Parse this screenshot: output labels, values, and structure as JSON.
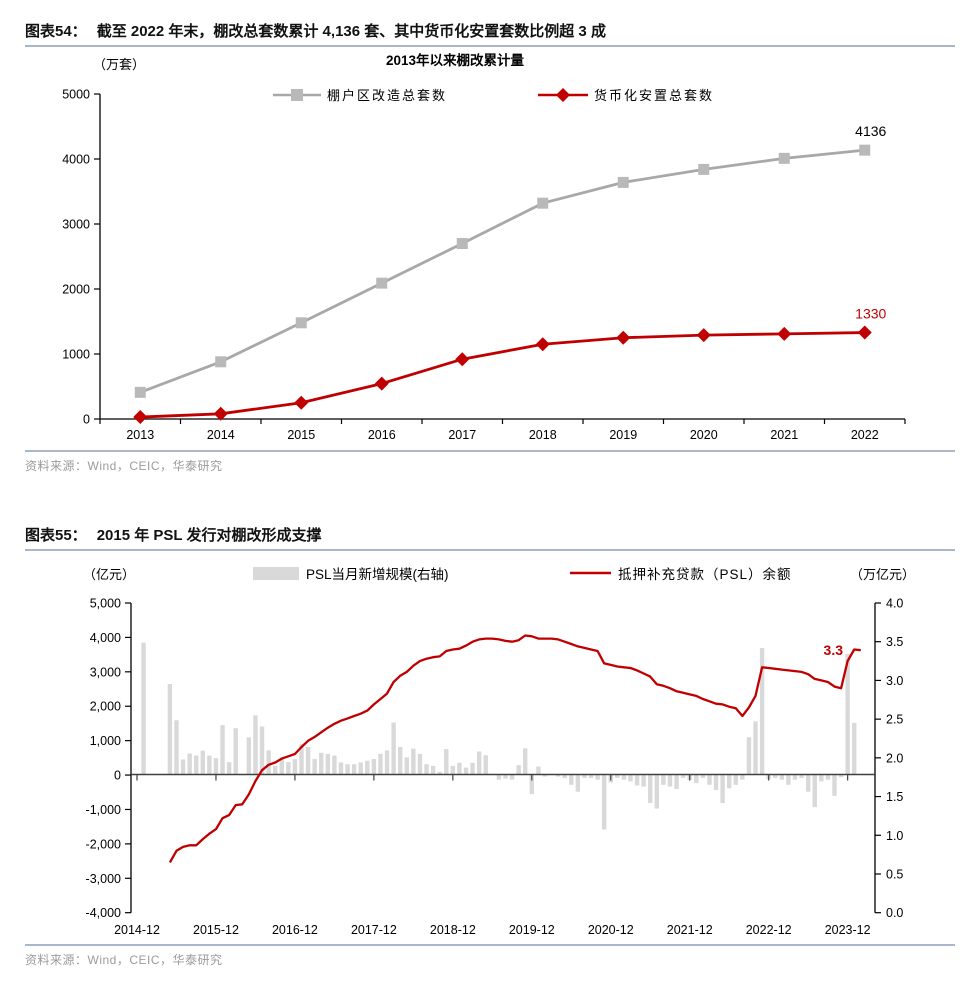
{
  "figure54": {
    "label": "图表54：",
    "title": "截至 2022 年末，棚改总套数累计 4,136 套、其中货币化安置套数比例超 3 成",
    "source": "资料来源：Wind，CEIC，华泰研究"
  },
  "figure55": {
    "label": "图表55：",
    "title": "2015 年 PSL 发行对棚改形成支撑",
    "source": "资料来源：Wind，CEIC，华泰研究"
  },
  "chart_data": [
    {
      "type": "line",
      "title": "2013年以来棚改累计量",
      "unit_label": "（万套）",
      "categories": [
        "2013",
        "2014",
        "2015",
        "2016",
        "2017",
        "2018",
        "2019",
        "2020",
        "2021",
        "2022"
      ],
      "ylim": [
        0,
        5000
      ],
      "ytick_step": 1000,
      "ytick_labels": [
        "0",
        "1000",
        "2000",
        "3000",
        "4000",
        "5000"
      ],
      "grid": false,
      "legend_position": "top-center",
      "series": [
        {
          "name": "棚户区改造总套数",
          "color": "#a8a8a8",
          "marker": "square",
          "marker_color": "#b9b9b9",
          "values": [
            410,
            880,
            1480,
            2090,
            2700,
            3320,
            3640,
            3840,
            4010,
            4136
          ],
          "end_label": "4136",
          "end_label_color": "#000000"
        },
        {
          "name": "货币化安置总套数",
          "color": "#c00000",
          "marker": "diamond",
          "marker_color": "#c00000",
          "values": [
            30,
            80,
            250,
            545,
            920,
            1150,
            1250,
            1290,
            1310,
            1330
          ],
          "end_label": "1330",
          "end_label_color": "#c00000"
        }
      ]
    },
    {
      "type": "bar+line",
      "left_axis_label": "（亿元）",
      "right_axis_label": "（万亿元）",
      "left_ylim": [
        -4000,
        5000
      ],
      "left_tick_labels": [
        "-4,000",
        "-3,000",
        "-2,000",
        "-1,000",
        "0",
        "1,000",
        "2,000",
        "3,000",
        "4,000",
        "5,000"
      ],
      "right_ylim": [
        0,
        4.0
      ],
      "right_tick_labels": [
        "0.0",
        "0.5",
        "1.0",
        "1.5",
        "2.0",
        "2.5",
        "3.0",
        "3.5",
        "4.0"
      ],
      "x_start_month": "2014-12",
      "x_frequency": "monthly",
      "x_tick_labels": [
        "2014-12",
        "2015-12",
        "2016-12",
        "2017-12",
        "2018-12",
        "2019-12",
        "2020-12",
        "2021-12",
        "2022-12",
        "2023-12"
      ],
      "grid": false,
      "annotation": {
        "text": "3.3",
        "color": "#c00000"
      },
      "bar_series": {
        "name": "PSL当月新增规模(右轴)",
        "color": "#d9d9d9",
        "values": [
          0,
          3830,
          0,
          0,
          0,
          2630,
          1576,
          438,
          609,
          551,
          694,
          550,
          474,
          1435,
          357,
          1346,
          0,
          1081,
          1719,
          1397,
          703,
          253,
          501,
          358,
          448,
          880,
          800,
          450,
          630,
          600,
          550,
          350,
          300,
          300,
          350,
          400,
          450,
          600,
          700,
          1510,
          800,
          500,
          750,
          600,
          300,
          250,
          80,
          740,
          250,
          340,
          200,
          340,
          670,
          560,
          0,
          -150,
          -120,
          -150,
          270,
          760,
          -570,
          230,
          -60,
          0,
          -60,
          -100,
          -300,
          -500,
          -100,
          -100,
          -150,
          -1600,
          -230,
          -100,
          -150,
          -200,
          -320,
          -350,
          -830,
          -990,
          -300,
          -350,
          -420,
          -100,
          -160,
          -250,
          -100,
          -300,
          -450,
          -830,
          -400,
          -300,
          -150,
          1082,
          1543,
          3675,
          -140,
          -100,
          -150,
          -300,
          -150,
          -100,
          -500,
          -950,
          -200,
          -150,
          -620,
          -80,
          3500,
          1500,
          0
        ]
      },
      "line_series": {
        "name": "抵押补充贷款（PSL）余额",
        "color": "#c00000",
        "values": [
          null,
          null,
          null,
          null,
          null,
          0.65,
          0.8,
          0.85,
          0.87,
          0.87,
          0.95,
          1.02,
          1.08,
          1.22,
          1.26,
          1.39,
          1.4,
          1.53,
          1.7,
          1.84,
          1.91,
          1.94,
          1.99,
          2.02,
          2.05,
          2.14,
          2.22,
          2.27,
          2.33,
          2.39,
          2.44,
          2.48,
          2.51,
          2.54,
          2.57,
          2.61,
          2.69,
          2.76,
          2.83,
          2.98,
          3.06,
          3.11,
          3.19,
          3.25,
          3.28,
          3.3,
          3.31,
          3.38,
          3.4,
          3.41,
          3.45,
          3.5,
          3.53,
          3.54,
          3.54,
          3.53,
          3.51,
          3.5,
          3.52,
          3.58,
          3.57,
          3.54,
          3.54,
          3.54,
          3.53,
          3.5,
          3.47,
          3.44,
          3.42,
          3.4,
          3.38,
          3.22,
          3.2,
          3.18,
          3.17,
          3.16,
          3.13,
          3.09,
          3.05,
          2.95,
          2.93,
          2.9,
          2.86,
          2.84,
          2.82,
          2.8,
          2.76,
          2.73,
          2.7,
          2.69,
          2.66,
          2.64,
          2.54,
          2.65,
          2.8,
          3.17,
          3.16,
          3.15,
          3.14,
          3.13,
          3.12,
          3.11,
          3.08,
          3.02,
          3.0,
          2.98,
          2.92,
          2.9,
          3.25,
          3.4,
          3.39
        ]
      }
    }
  ]
}
